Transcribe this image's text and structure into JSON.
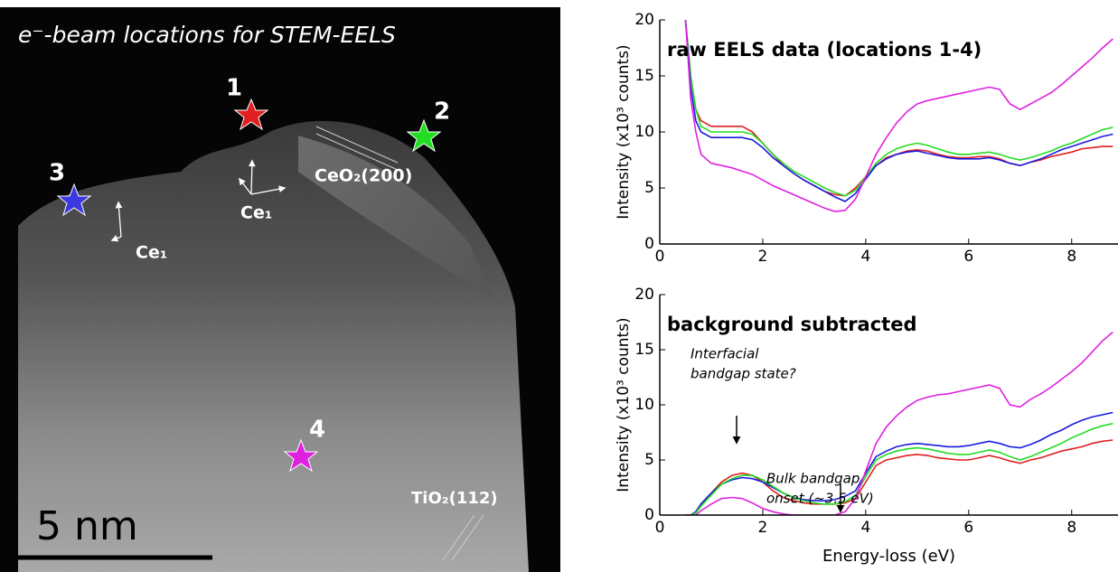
{
  "image": {
    "title": "e⁻-beam locations for STEM-EELS",
    "locations": [
      "1",
      "2",
      "3",
      "4"
    ],
    "labels": [
      "Ce₁",
      "Ce₁",
      "CeO₂(200)",
      "TiO₂(112)"
    ],
    "scale_bar": "5 nm"
  },
  "chart_data": [
    {
      "type": "line",
      "title": "raw EELS data (locations 1-4)",
      "y_label": "Intensity (x10³ counts)",
      "x": [
        0.5,
        0.6,
        0.7,
        0.8,
        1.0,
        1.2,
        1.4,
        1.6,
        1.8,
        2.0,
        2.2,
        2.4,
        2.6,
        2.8,
        3.0,
        3.2,
        3.4,
        3.6,
        3.8,
        4.0,
        4.2,
        4.4,
        4.6,
        4.8,
        5.0,
        5.2,
        5.4,
        5.6,
        5.8,
        6.0,
        6.2,
        6.4,
        6.6,
        6.8,
        7.0,
        7.2,
        7.4,
        7.6,
        7.8,
        8.0,
        8.2,
        8.4,
        8.6,
        8.8
      ],
      "series": [
        {
          "color": "#e02020",
          "values": [
            20,
            15,
            12,
            11,
            10.5,
            10.5,
            10.5,
            10.5,
            10,
            9,
            8,
            7,
            6.3,
            5.7,
            5.2,
            4.7,
            4.4,
            4.3,
            5,
            6,
            7,
            7.7,
            8,
            8.3,
            8.4,
            8.3,
            8,
            7.8,
            7.7,
            7.7,
            7.8,
            7.8,
            7.6,
            7.2,
            7,
            7.3,
            7.5,
            7.8,
            8,
            8.2,
            8.5,
            8.6,
            8.7,
            8.7
          ]
        },
        {
          "color": "#22dd22",
          "values": [
            20,
            15,
            12,
            10.5,
            10,
            10,
            10,
            10,
            9.8,
            9,
            8,
            7.2,
            6.5,
            6,
            5.5,
            5,
            4.6,
            4.3,
            4.8,
            6,
            7.2,
            8,
            8.5,
            8.8,
            9,
            8.8,
            8.5,
            8.2,
            8,
            8,
            8.1,
            8.2,
            8,
            7.7,
            7.5,
            7.7,
            8,
            8.3,
            8.7,
            9,
            9.4,
            9.8,
            10.2,
            10.4
          ]
        },
        {
          "color": "#1a1ae0",
          "values": [
            20,
            14,
            11,
            10,
            9.5,
            9.5,
            9.5,
            9.5,
            9.3,
            8.6,
            7.7,
            7,
            6.3,
            5.7,
            5.2,
            4.7,
            4.2,
            3.8,
            4.5,
            5.8,
            7,
            7.6,
            8,
            8.2,
            8.3,
            8.1,
            7.9,
            7.7,
            7.6,
            7.6,
            7.6,
            7.7,
            7.5,
            7.2,
            7,
            7.3,
            7.6,
            8,
            8.4,
            8.7,
            9,
            9.3,
            9.6,
            9.8
          ]
        },
        {
          "color": "#e020e0",
          "values": [
            20,
            13,
            10,
            8,
            7.2,
            7,
            6.8,
            6.5,
            6.2,
            5.7,
            5.2,
            4.8,
            4.4,
            4,
            3.6,
            3.2,
            2.9,
            3,
            4,
            6,
            8,
            9.5,
            10.8,
            11.8,
            12.5,
            12.8,
            13,
            13.2,
            13.4,
            13.6,
            13.8,
            14,
            13.8,
            12.5,
            12,
            12.5,
            13,
            13.5,
            14.2,
            15,
            15.8,
            16.6,
            17.5,
            18.3
          ]
        }
      ],
      "xlim": [
        0,
        8.9
      ],
      "xticks": [
        0,
        2,
        4,
        6,
        8
      ],
      "ylim": [
        0,
        20
      ],
      "yticks": [
        0,
        5,
        10,
        15,
        20
      ]
    },
    {
      "type": "line",
      "title": "background subtracted",
      "y_label": "Intensity (x10³ counts)",
      "x_label": "Energy-loss (eV)",
      "annotations": [
        [
          "Interfacial",
          "bandgap state?"
        ],
        [
          "Bulk bandgap",
          "onset (~3.5 eV)"
        ]
      ],
      "x": [
        0.5,
        0.6,
        0.7,
        0.8,
        1.0,
        1.2,
        1.4,
        1.6,
        1.8,
        2.0,
        2.2,
        2.4,
        2.6,
        2.8,
        3.0,
        3.2,
        3.4,
        3.6,
        3.8,
        4.0,
        4.2,
        4.4,
        4.6,
        4.8,
        5.0,
        5.2,
        5.4,
        5.6,
        5.8,
        6.0,
        6.2,
        6.4,
        6.6,
        6.8,
        7.0,
        7.2,
        7.4,
        7.6,
        7.8,
        8.0,
        8.2,
        8.4,
        8.6,
        8.8
      ],
      "series": [
        {
          "color": "#e02020",
          "values": [
            0,
            0,
            0.3,
            1,
            2,
            3,
            3.6,
            3.8,
            3.6,
            3,
            2.2,
            1.6,
            1.3,
            1.1,
            1,
            1,
            1,
            1.1,
            1.5,
            3,
            4.5,
            5,
            5.2,
            5.4,
            5.5,
            5.4,
            5.2,
            5.1,
            5,
            5,
            5.2,
            5.4,
            5.2,
            4.9,
            4.7,
            5,
            5.2,
            5.5,
            5.8,
            6,
            6.2,
            6.5,
            6.7,
            6.8
          ]
        },
        {
          "color": "#1a1ae0",
          "values": [
            0,
            0,
            0.3,
            1,
            2,
            2.8,
            3.2,
            3.4,
            3.3,
            3,
            2.5,
            2,
            1.6,
            1.4,
            1.3,
            1.3,
            1.4,
            1.7,
            2.2,
            3.8,
            5.3,
            5.8,
            6.2,
            6.4,
            6.5,
            6.4,
            6.3,
            6.2,
            6.2,
            6.3,
            6.5,
            6.7,
            6.5,
            6.2,
            6.1,
            6.4,
            6.8,
            7.3,
            7.7,
            8.2,
            8.6,
            8.9,
            9.1,
            9.3
          ]
        },
        {
          "color": "#22dd22",
          "values": [
            0,
            0,
            0.2,
            0.8,
            1.8,
            2.8,
            3.3,
            3.6,
            3.6,
            3.2,
            2.6,
            2,
            1.6,
            1.3,
            1.1,
            1,
            1,
            1.2,
            1.8,
            3.5,
            5,
            5.5,
            5.8,
            6,
            6.1,
            6,
            5.8,
            5.6,
            5.5,
            5.5,
            5.7,
            5.9,
            5.7,
            5.3,
            5,
            5.3,
            5.7,
            6.1,
            6.5,
            7,
            7.4,
            7.8,
            8.1,
            8.3
          ]
        },
        {
          "color": "#e020e0",
          "values": [
            0,
            0,
            0,
            0.4,
            1,
            1.5,
            1.6,
            1.5,
            1.1,
            0.6,
            0.3,
            0.1,
            0,
            0,
            0,
            0,
            0,
            0.3,
            1.5,
            4,
            6.5,
            8,
            9,
            9.8,
            10.4,
            10.7,
            10.9,
            11,
            11.2,
            11.4,
            11.6,
            11.8,
            11.5,
            10,
            9.8,
            10.5,
            11,
            11.6,
            12.3,
            13,
            13.8,
            14.8,
            15.8,
            16.6
          ]
        }
      ],
      "xlim": [
        0,
        8.9
      ],
      "xticks": [
        0,
        2,
        4,
        6,
        8
      ],
      "ylim": [
        0,
        20
      ],
      "yticks": [
        0,
        5,
        10,
        15,
        20
      ]
    }
  ]
}
